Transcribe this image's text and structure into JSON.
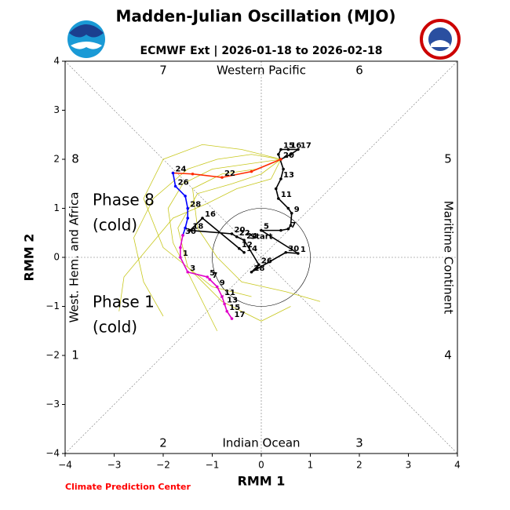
{
  "chart_data": {
    "type": "phase",
    "title": "Madden-Julian Oscillation (MJO)",
    "subtitle": "ECMWF Ext | 2026-01-18 to 2026-02-18",
    "xlabel": "RMM 1",
    "ylabel": "RMM 2",
    "footer": "Climate Prediction Center",
    "xlim": [
      -4,
      4
    ],
    "ylim": [
      -4,
      4
    ],
    "xticks": [
      {
        "value": -4,
        "label": "−4"
      },
      {
        "value": -3,
        "label": "−3"
      },
      {
        "value": -2,
        "label": "−2"
      },
      {
        "value": -1,
        "label": "−1"
      },
      0,
      1,
      2,
      3,
      4
    ],
    "yticks": [
      {
        "value": -4,
        "label": "−4"
      },
      {
        "value": -3,
        "label": "−3"
      },
      {
        "value": -2,
        "label": "−2"
      },
      {
        "value": -1,
        "label": "−1"
      },
      0,
      1,
      2,
      3,
      4
    ],
    "phase_labels": [
      "1",
      "2",
      "3",
      "4",
      "5",
      "6",
      "7",
      "8"
    ],
    "regions": [
      "Western Pacific",
      "Maritime Continent",
      "Indian Ocean",
      "West. Hem. and Africa"
    ],
    "annotations": [
      "Phase 8",
      "(cold)",
      "Phase 1",
      "(cold)"
    ],
    "start_label": "Start",
    "ensemble_color": "#c8c81e",
    "ensemble": [
      {
        "x": [
          0.4,
          -0.3,
          -1.0,
          -1.6,
          -1.9,
          -1.8,
          -1.5,
          -1.2,
          -0.9
        ],
        "y": [
          2.0,
          1.9,
          1.8,
          1.5,
          1.0,
          0.3,
          -0.3,
          -0.9,
          -1.5
        ]
      },
      {
        "x": [
          0.4,
          -0.2,
          -0.9,
          -1.5,
          -2.2,
          -2.6,
          -2.4,
          -2.0
        ],
        "y": [
          2.0,
          2.1,
          2.0,
          1.8,
          1.2,
          0.4,
          -0.5,
          -1.2
        ]
      },
      {
        "x": [
          0.4,
          0.0,
          -0.6,
          -1.3,
          -1.7,
          -1.5,
          -0.8,
          0.0,
          0.6
        ],
        "y": [
          2.0,
          1.7,
          1.5,
          1.3,
          0.6,
          -0.2,
          -0.9,
          -1.3,
          -1.0
        ]
      },
      {
        "x": [
          0.4,
          -0.4,
          -1.2,
          -2.0,
          -2.4,
          -2.0,
          -1.0,
          -0.2
        ],
        "y": [
          2.0,
          2.2,
          2.3,
          2.0,
          1.2,
          0.2,
          -0.6,
          -0.8
        ]
      },
      {
        "x": [
          0.4,
          -0.1,
          -0.8,
          -1.4,
          -1.3,
          -0.9,
          -0.4,
          0.5,
          1.2
        ],
        "y": [
          2.0,
          1.8,
          1.7,
          1.4,
          0.6,
          0.0,
          -0.5,
          -0.7,
          -0.9
        ]
      },
      {
        "x": [
          0.4,
          0.2,
          -0.5,
          -1.1,
          -1.8,
          -2.3,
          -2.8,
          -2.9
        ],
        "y": [
          2.0,
          1.6,
          1.4,
          1.1,
          0.8,
          0.2,
          -0.4,
          -1.1
        ]
      }
    ],
    "series": [
      {
        "color": "#000000",
        "x": [
          -0.45,
          -0.35,
          -1.2,
          -1.45,
          -0.6,
          -0.5,
          -0.35,
          -0.05,
          -0.2,
          0.5,
          0.75,
          0.0,
          0.4,
          0.55,
          0.6,
          0.62,
          0.55,
          0.35,
          0.3,
          0.4,
          0.45,
          0.35,
          0.4,
          0.55,
          0.75,
          0.6,
          0.4
        ],
        "y": [
          0.18,
          0.1,
          0.8,
          0.55,
          0.48,
          0.42,
          0.35,
          -0.15,
          -0.3,
          0.1,
          0.08,
          0.55,
          0.55,
          0.58,
          0.65,
          0.9,
          1.0,
          1.2,
          1.4,
          1.6,
          1.8,
          2.1,
          2.2,
          2.2,
          2.2,
          2.1,
          2.0
        ],
        "labels": [
          "12",
          "14",
          "16",
          "18",
          "20",
          "22",
          "24",
          "26",
          "28",
          "30",
          "1",
          "5",
          null,
          "7",
          null,
          "9",
          null,
          "11",
          null,
          "13",
          null,
          null,
          "15",
          "16",
          "17",
          null,
          "20"
        ]
      },
      {
        "color": "#ff2a00",
        "x": [
          0.4,
          -0.2,
          -0.8,
          -1.4,
          -1.8
        ],
        "y": [
          2.0,
          1.75,
          1.63,
          1.7,
          1.72
        ],
        "labels": [
          null,
          null,
          "22",
          null,
          "24"
        ]
      },
      {
        "color": "#0000ff",
        "x": [
          -1.8,
          -1.75,
          -1.55,
          -1.5,
          -1.5,
          -1.55,
          -1.6
        ],
        "y": [
          1.72,
          1.45,
          1.25,
          1.0,
          0.8,
          0.6,
          0.45
        ],
        "labels": [
          null,
          "26",
          null,
          "28",
          null,
          null,
          "30"
        ]
      },
      {
        "color": "#e000c8",
        "x": [
          -1.6,
          -1.65,
          -1.65,
          -1.5,
          -1.1,
          -1.05,
          -0.9,
          -0.8,
          -0.75,
          -0.7,
          -0.6
        ],
        "y": [
          0.45,
          0.2,
          0.0,
          -0.3,
          -0.4,
          -0.45,
          -0.6,
          -0.8,
          -0.95,
          -1.1,
          -1.25
        ],
        "labels": [
          null,
          null,
          "1",
          "3",
          "5",
          "7",
          "9",
          "11",
          "13",
          "15",
          "17"
        ]
      }
    ]
  }
}
